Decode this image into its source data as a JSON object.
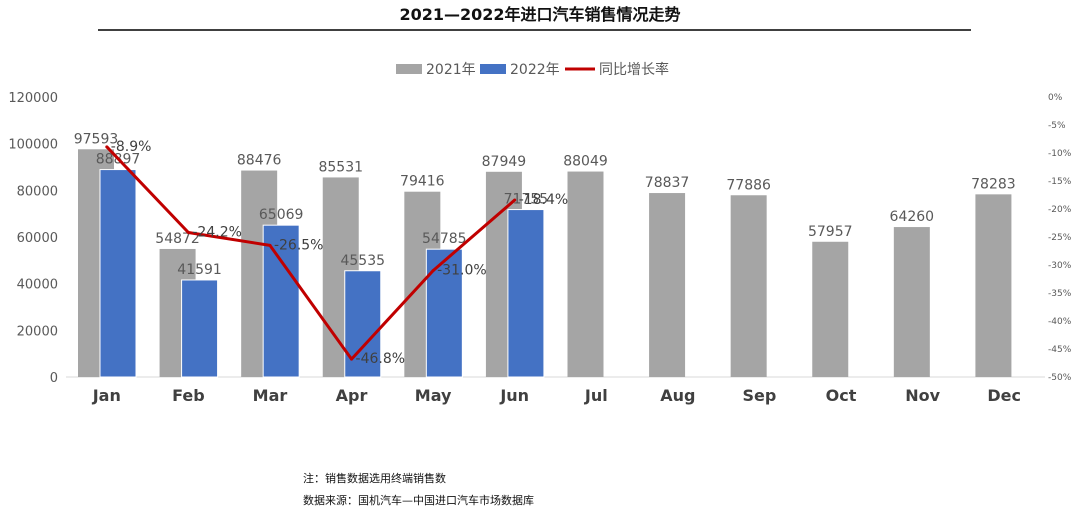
{
  "chart_data": {
    "type": "bar",
    "title": "2021—2022年进口汽车销售情况走势",
    "categories": [
      "Jan",
      "Feb",
      "Mar",
      "Apr",
      "May",
      "Jun",
      "Jul",
      "Aug",
      "Sep",
      "Oct",
      "Nov",
      "Dec"
    ],
    "series": [
      {
        "name": "2021年",
        "type": "bar",
        "color": "#a5a5a5",
        "values": [
          97593,
          54872,
          88476,
          85531,
          79416,
          87949,
          88049,
          78837,
          77886,
          57957,
          64260,
          78283
        ]
      },
      {
        "name": "2022年",
        "type": "bar",
        "color": "#4472c4",
        "values": [
          88897,
          41591,
          65069,
          45535,
          54785,
          71755,
          null,
          null,
          null,
          null,
          null,
          null
        ]
      },
      {
        "name": "同比增长率",
        "type": "line",
        "axis": "right",
        "color": "#c00000",
        "values": [
          -8.9,
          -24.2,
          -26.5,
          -46.8,
          -31.0,
          -18.4,
          null,
          null,
          null,
          null,
          null,
          null
        ],
        "labels": [
          "-8.9%",
          "-24.2%",
          "-26.5%",
          "-46.8%",
          "-31.0%",
          "-18.4%"
        ]
      }
    ],
    "y_left": {
      "min": 0,
      "max": 120000,
      "ticks": [
        "0",
        "20000",
        "40000",
        "60000",
        "80000",
        "100000",
        "120000"
      ]
    },
    "y_right": {
      "min": -50,
      "max": 0,
      "ticks": [
        "0%",
        "-5%",
        "-10%",
        "-15%",
        "-20%",
        "-25%",
        "-30%",
        "-35%",
        "-40%",
        "-45%",
        "-50%"
      ]
    },
    "legend_position": "top",
    "grid": false
  },
  "notes": {
    "line1": "注：销售数据选用终端销售数",
    "line2": "数据来源：国机汽车—中国进口汽车市场数据库"
  }
}
